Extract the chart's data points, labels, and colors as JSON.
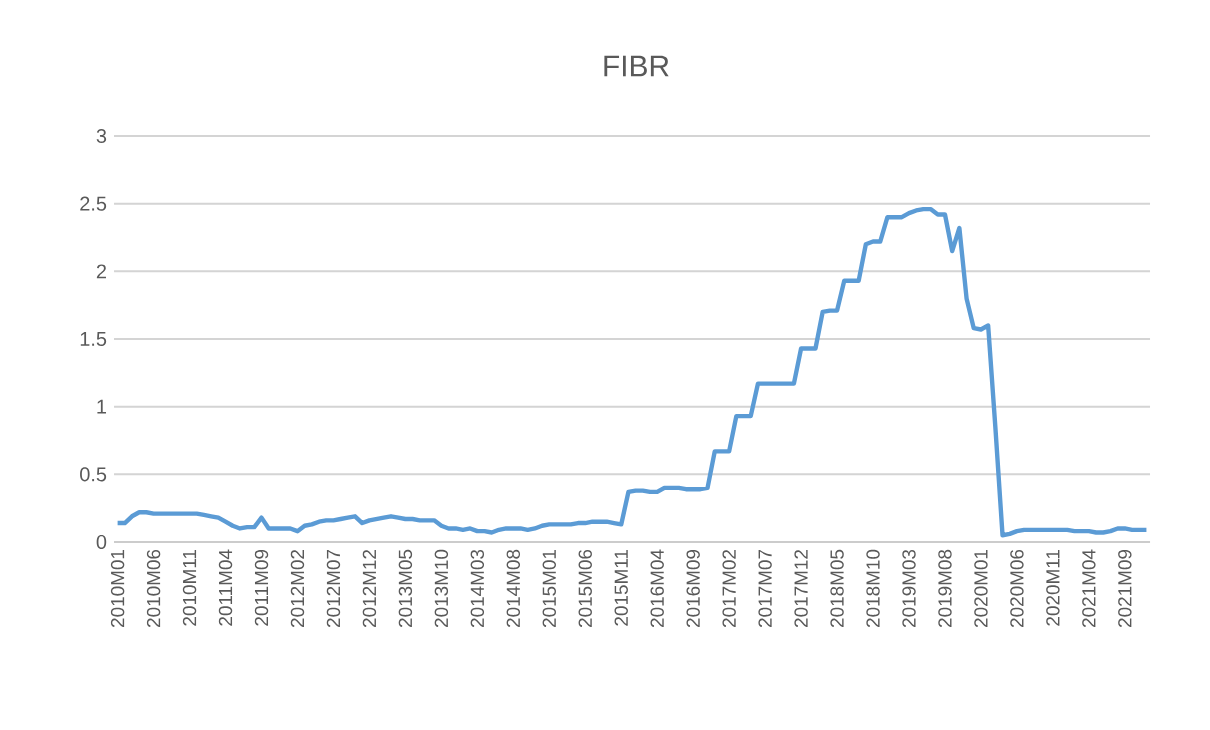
{
  "chart_data": {
    "type": "line",
    "title": "FIBR",
    "color": "#5b9bd5",
    "ylim": [
      0,
      3
    ],
    "yticks": [
      0,
      0.5,
      1,
      1.5,
      2,
      2.5,
      3
    ],
    "grid": "y",
    "marker": "none",
    "line_style": "solid",
    "categories": [
      "2010M01",
      null,
      null,
      null,
      null,
      "2010M06",
      null,
      null,
      null,
      null,
      "2010M11",
      null,
      null,
      null,
      null,
      "2011M04",
      null,
      null,
      null,
      null,
      "2011M09",
      null,
      null,
      null,
      null,
      "2012M02",
      null,
      null,
      null,
      null,
      "2012M07",
      null,
      null,
      null,
      null,
      "2012M12",
      null,
      null,
      null,
      null,
      "2013M05",
      null,
      null,
      null,
      null,
      "2013M10",
      null,
      null,
      null,
      null,
      "2014M03",
      null,
      null,
      null,
      null,
      "2014M08",
      null,
      null,
      null,
      null,
      "2015M01",
      null,
      null,
      null,
      null,
      "2015M06",
      null,
      null,
      null,
      null,
      "2015M11",
      null,
      null,
      null,
      null,
      "2016M04",
      null,
      null,
      null,
      null,
      "2016M09",
      null,
      null,
      null,
      null,
      "2017M02",
      null,
      null,
      null,
      null,
      "2017M07",
      null,
      null,
      null,
      null,
      "2017M12",
      null,
      null,
      null,
      null,
      "2018M05",
      null,
      null,
      null,
      null,
      "2018M10",
      null,
      null,
      null,
      null,
      "2019M03",
      null,
      null,
      null,
      null,
      "2019M08",
      null,
      null,
      null,
      null,
      "2020M01",
      null,
      null,
      null,
      null,
      "2020M06",
      null,
      null,
      null,
      null,
      "2020M11",
      null,
      null,
      null,
      null,
      "2021M04",
      null,
      null,
      null,
      null,
      "2021M09",
      null,
      null,
      null
    ],
    "values": [
      0.14,
      0.14,
      0.19,
      0.22,
      0.22,
      0.21,
      0.21,
      0.21,
      0.21,
      0.21,
      0.21,
      0.21,
      0.2,
      0.19,
      0.18,
      0.15,
      0.12,
      0.1,
      0.11,
      0.11,
      0.18,
      0.1,
      0.1,
      0.1,
      0.1,
      0.08,
      0.12,
      0.13,
      0.15,
      0.16,
      0.16,
      0.17,
      0.18,
      0.19,
      0.14,
      0.16,
      0.17,
      0.18,
      0.19,
      0.18,
      0.17,
      0.17,
      0.16,
      0.16,
      0.16,
      0.12,
      0.1,
      0.1,
      0.09,
      0.1,
      0.08,
      0.08,
      0.07,
      0.09,
      0.1,
      0.1,
      0.1,
      0.09,
      0.1,
      0.12,
      0.13,
      0.13,
      0.13,
      0.13,
      0.14,
      0.14,
      0.15,
      0.15,
      0.15,
      0.14,
      0.13,
      0.37,
      0.38,
      0.38,
      0.37,
      0.37,
      0.4,
      0.4,
      0.4,
      0.39,
      0.39,
      0.39,
      0.4,
      0.67,
      0.67,
      0.67,
      0.93,
      0.93,
      0.93,
      1.17,
      1.17,
      1.17,
      1.17,
      1.17,
      1.17,
      1.43,
      1.43,
      1.43,
      1.7,
      1.71,
      1.71,
      1.93,
      1.93,
      1.93,
      2.2,
      2.22,
      2.22,
      2.4,
      2.4,
      2.4,
      2.43,
      2.45,
      2.46,
      2.46,
      2.42,
      2.42,
      2.15,
      2.32,
      1.8,
      1.58,
      1.57,
      1.6,
      0.85,
      0.05,
      0.06,
      0.08,
      0.09,
      0.09,
      0.09,
      0.09,
      0.09,
      0.09,
      0.09,
      0.08,
      0.08,
      0.08,
      0.07,
      0.07,
      0.08,
      0.1,
      0.1,
      0.09,
      0.09,
      0.09
    ]
  }
}
